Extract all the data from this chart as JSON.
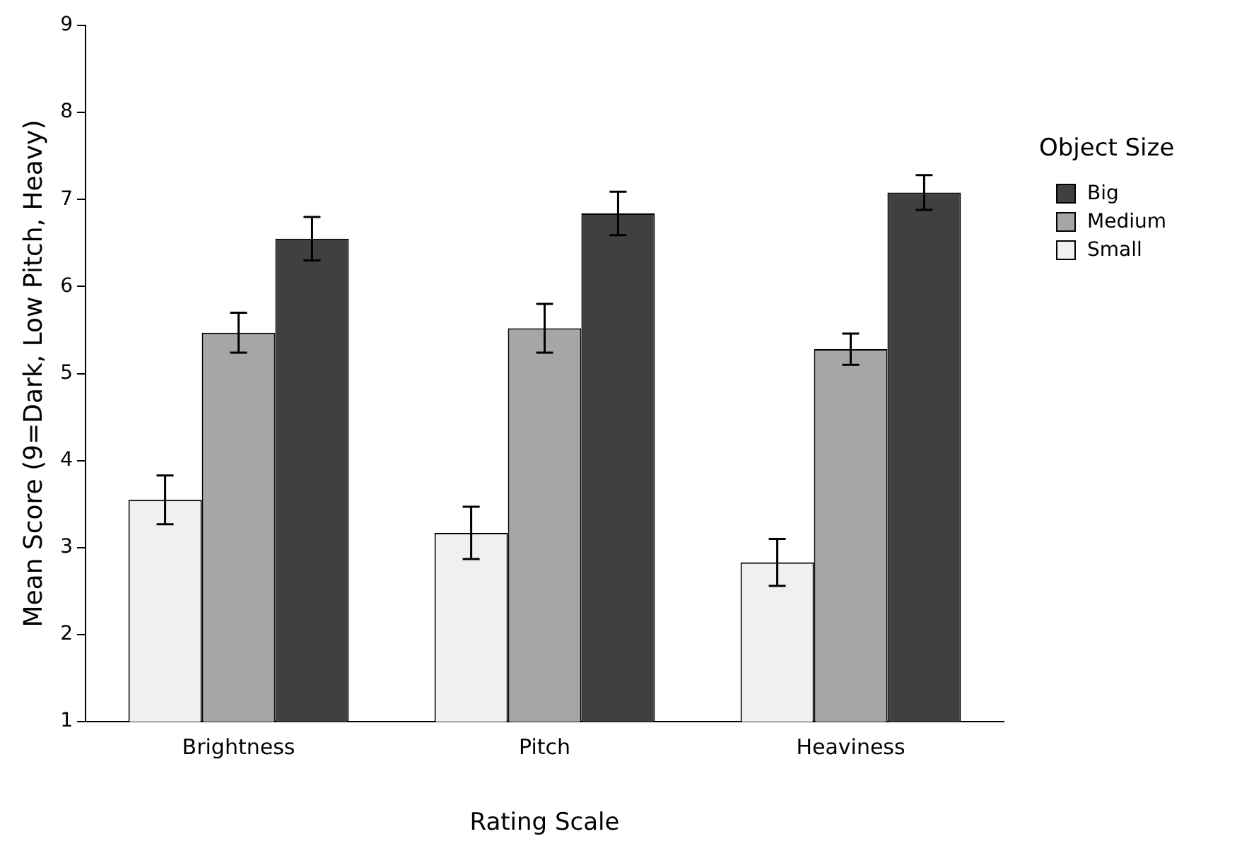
{
  "chart_data": {
    "type": "bar",
    "xlabel": "Rating Scale",
    "ylabel": "Mean Score (9=Dark, Low Pitch, Heavy)",
    "legend_title": "Object Size",
    "categories": [
      "Brightness",
      "Pitch",
      "Heaviness"
    ],
    "series": [
      {
        "name": "Small",
        "color": "#f0f0f0",
        "values": [
          3.55,
          3.17,
          2.83
        ],
        "errors": [
          0.28,
          0.3,
          0.27
        ]
      },
      {
        "name": "Medium",
        "color": "#a6a6a6",
        "values": [
          5.47,
          5.52,
          5.28
        ],
        "errors": [
          0.23,
          0.28,
          0.18
        ]
      },
      {
        "name": "Big",
        "color": "#404040",
        "values": [
          6.55,
          6.84,
          7.08
        ],
        "errors": [
          0.25,
          0.25,
          0.2
        ]
      }
    ],
    "ylim": [
      1,
      9
    ],
    "yticks": [
      1,
      2,
      3,
      4,
      5,
      6,
      7,
      8,
      9
    ],
    "grid": false,
    "legend": "right"
  }
}
